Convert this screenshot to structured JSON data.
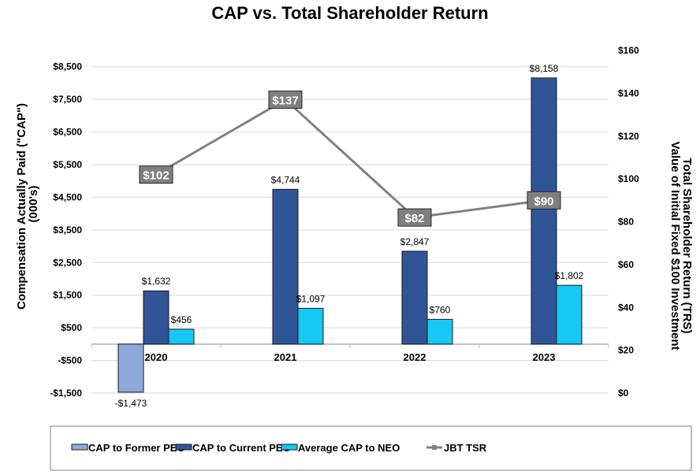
{
  "chart_data": {
    "type": "bar",
    "title": "CAP vs. Total Shareholder Return",
    "ylabel": "Compensation Actually Paid (\"CAP\") (000's)",
    "ylabel_lines": [
      "Compensation Actually Paid (\"CAP\")",
      "(000's)"
    ],
    "y2label_lines": [
      "Total Shareholder Return (TRS)",
      "Value of Initial Fixed $100 Investment"
    ],
    "categories": [
      "2020",
      "2021",
      "2022",
      "2023"
    ],
    "ylim": [
      -1500,
      9000
    ],
    "y_ticks": [
      -1500,
      -500,
      500,
      1500,
      2500,
      3500,
      4500,
      5500,
      6500,
      7500,
      8500
    ],
    "y_tick_labels": [
      "-$1,500",
      "-$500",
      "$500",
      "$1,500",
      "$2,500",
      "$3,500",
      "$4,500",
      "$5,500",
      "$6,500",
      "$7,500",
      "$8,500"
    ],
    "y2lim": [
      0,
      160
    ],
    "y2_ticks": [
      0,
      20,
      40,
      60,
      80,
      100,
      120,
      140,
      160
    ],
    "y2_tick_labels": [
      "$0",
      "$20",
      "$40",
      "$60",
      "$80",
      "$100",
      "$120",
      "$140",
      "$160"
    ],
    "grid": true,
    "legend_position": "bottom",
    "series": [
      {
        "name": "CAP to Former PEO",
        "kind": "bar",
        "color": "#8eaadb",
        "values": [
          -1473,
          null,
          null,
          null
        ],
        "labels": [
          "-$1,473",
          "",
          "",
          ""
        ]
      },
      {
        "name": "CAP to Current PEO",
        "kind": "bar",
        "color": "#2f5597",
        "values": [
          1632,
          4744,
          2847,
          8158
        ],
        "labels": [
          "$1,632",
          "$4,744",
          "$2,847",
          "$8,158"
        ]
      },
      {
        "name": "Average CAP to NEO",
        "kind": "bar",
        "color": "#17c8f4",
        "values": [
          456,
          1097,
          760,
          1802
        ],
        "labels": [
          "$456",
          "$1,097",
          "$760",
          "$1,802"
        ]
      },
      {
        "name": "JBT TSR",
        "kind": "line",
        "axis": "right",
        "color": "#808080",
        "values": [
          102,
          137,
          82,
          90
        ],
        "labels": [
          "$102",
          "$137",
          "$82",
          "$90"
        ]
      }
    ]
  }
}
